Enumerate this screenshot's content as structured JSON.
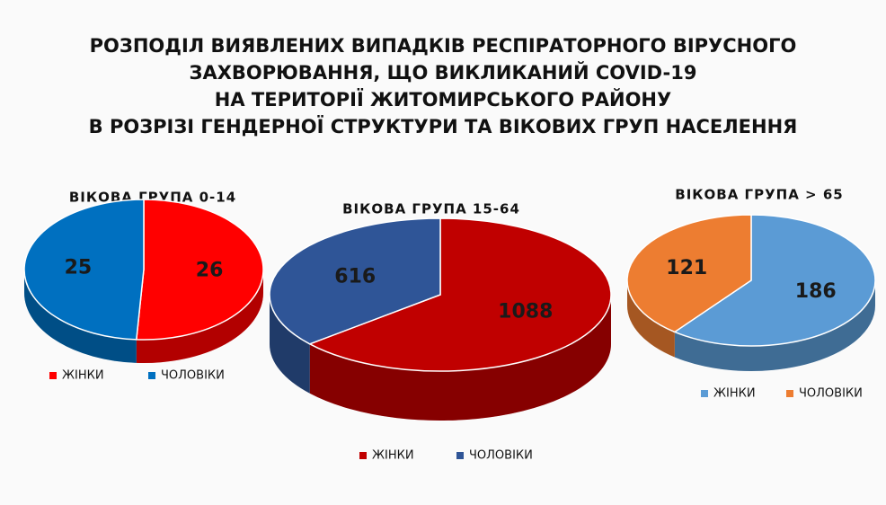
{
  "title": [
    "РОЗПОДІЛ ВИЯВЛЕНИХ ВИПАДКІВ РЕСПІРАТОРНОГО ВІРУСНОГО",
    "ЗАХВОРЮВАННЯ, ЩО ВИКЛИКАНИЙ COVID-19",
    "НА ТЕРИТОРІЇ ЖИТОМИРСЬКОГО РАЙОНУ",
    "В РОЗРІЗІ ГЕНДЕРНОЇ СТРУКТУРИ ТА ВІКОВИХ ГРУП НАСЕЛЕННЯ"
  ],
  "chart_data": [
    {
      "type": "pie",
      "title": "ВІКОВА ГРУПА 0-14",
      "categories": [
        "ЖІНКИ",
        "ЧОЛОВІКИ"
      ],
      "values": [
        26,
        25
      ],
      "colors": [
        "#ff0000",
        "#0070c0"
      ]
    },
    {
      "type": "pie",
      "title": "ВІКОВА ГРУПА 15-64",
      "categories": [
        "ЖІНКИ",
        "ЧОЛОВІКИ"
      ],
      "values": [
        1088,
        616
      ],
      "colors": [
        "#c00000",
        "#2f5597"
      ]
    },
    {
      "type": "pie",
      "title": "ВІКОВА ГРУПА > 65",
      "categories": [
        "ЖІНКИ",
        "ЧОЛОВІКИ"
      ],
      "values": [
        186,
        121
      ],
      "colors": [
        "#5b9bd5",
        "#ed7d31"
      ]
    }
  ]
}
